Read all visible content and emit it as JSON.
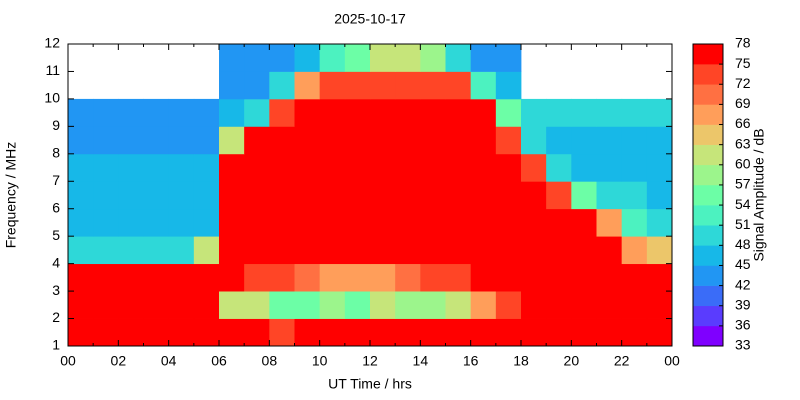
{
  "chart_data": {
    "type": "heatmap",
    "title": "2025-10-17",
    "x_label": "UT Time / hrs",
    "y_label": "Frequency / MHz",
    "xbins": [
      0,
      1,
      2,
      3,
      4,
      5,
      6,
      7,
      8,
      9,
      10,
      11,
      12,
      13,
      14,
      15,
      16,
      17,
      18,
      19,
      20,
      21,
      22,
      23,
      24
    ],
    "ybins": [
      1,
      2,
      3,
      4,
      5,
      6,
      7,
      8,
      9,
      10,
      11,
      12
    ],
    "z": [
      [
        76,
        76,
        76,
        76,
        76,
        76,
        76,
        76,
        74,
        76,
        76,
        76,
        76,
        76,
        76,
        76,
        76,
        76,
        76,
        76,
        76,
        76,
        76,
        76
      ],
      [
        76,
        76,
        76,
        76,
        76,
        76,
        62,
        60,
        56,
        56,
        58,
        56,
        60,
        58,
        58,
        62,
        68,
        72,
        76,
        76,
        76,
        76,
        76,
        76
      ],
      [
        75,
        75,
        75,
        75,
        75,
        76,
        76,
        74,
        72,
        70,
        68,
        66,
        68,
        70,
        72,
        74,
        76,
        76,
        76,
        76,
        76,
        76,
        76,
        76
      ],
      [
        48,
        48,
        48,
        48,
        48,
        60,
        76,
        76,
        76,
        76,
        76,
        76,
        76,
        76,
        76,
        76,
        76,
        76,
        76,
        76,
        76,
        76,
        66,
        64
      ],
      [
        47,
        47,
        47,
        47,
        47,
        47,
        76,
        76,
        76,
        76,
        76,
        76,
        76,
        76,
        76,
        76,
        76,
        76,
        76,
        76,
        76,
        66,
        52,
        50
      ],
      [
        45,
        45,
        45,
        45,
        45,
        45,
        76,
        76,
        76,
        76,
        76,
        76,
        76,
        76,
        76,
        76,
        76,
        76,
        76,
        72,
        56,
        50,
        48,
        47
      ],
      [
        45,
        45,
        45,
        45,
        45,
        45,
        76,
        76,
        76,
        76,
        76,
        76,
        76,
        76,
        76,
        76,
        76,
        76,
        72,
        50,
        47,
        46,
        46,
        46
      ],
      [
        44,
        44,
        44,
        44,
        44,
        44,
        60,
        76,
        76,
        76,
        76,
        76,
        76,
        76,
        76,
        76,
        76,
        74,
        48,
        46,
        46,
        46,
        46,
        46
      ],
      [
        44,
        44,
        44,
        44,
        44,
        44,
        46,
        48,
        74,
        76,
        76,
        76,
        76,
        76,
        76,
        76,
        76,
        56,
        50,
        48,
        48,
        48,
        48,
        48
      ],
      [
        null,
        null,
        null,
        null,
        null,
        null,
        44,
        44,
        48,
        66,
        74,
        74,
        74,
        74,
        74,
        74,
        52,
        45,
        null,
        null,
        null,
        null,
        null,
        null
      ],
      [
        null,
        null,
        null,
        null,
        null,
        null,
        42,
        43,
        44,
        46,
        52,
        56,
        62,
        62,
        58,
        50,
        44,
        43,
        null,
        null,
        null,
        null,
        null,
        null
      ]
    ],
    "xlim": [
      0,
      24
    ],
    "ylim": [
      1,
      12
    ],
    "xticks": [
      {
        "value": 0,
        "label": "00"
      },
      {
        "value": 2,
        "label": "02"
      },
      {
        "value": 4,
        "label": "04"
      },
      {
        "value": 6,
        "label": "06"
      },
      {
        "value": 8,
        "label": "08"
      },
      10,
      12,
      14,
      16,
      18,
      20,
      22,
      {
        "value": 24,
        "label": "00"
      }
    ],
    "x_minor_ticks": [
      1,
      3,
      5,
      7,
      9,
      11,
      13,
      15,
      17,
      19,
      21,
      23
    ],
    "yticks": [
      1,
      2,
      3,
      4,
      5,
      6,
      7,
      8,
      9,
      10,
      11,
      12
    ],
    "colorbar": {
      "label": "Signal Amplitude / dB",
      "zlim": [
        33,
        78
      ],
      "ticks": [
        33,
        36,
        39,
        42,
        45,
        48,
        51,
        54,
        57,
        60,
        63,
        66,
        69,
        72,
        75,
        78
      ],
      "colors": [
        "#7f00ff",
        "#5a3cfe",
        "#3a6cf8",
        "#2196f3",
        "#17b8e8",
        "#2ed8d8",
        "#4cf2c0",
        "#6cfea6",
        "#9cf58c",
        "#c6e57a",
        "#ecc66a",
        "#ff9e5a",
        "#ff7042",
        "#ff4526",
        "#ff0000"
      ]
    }
  }
}
